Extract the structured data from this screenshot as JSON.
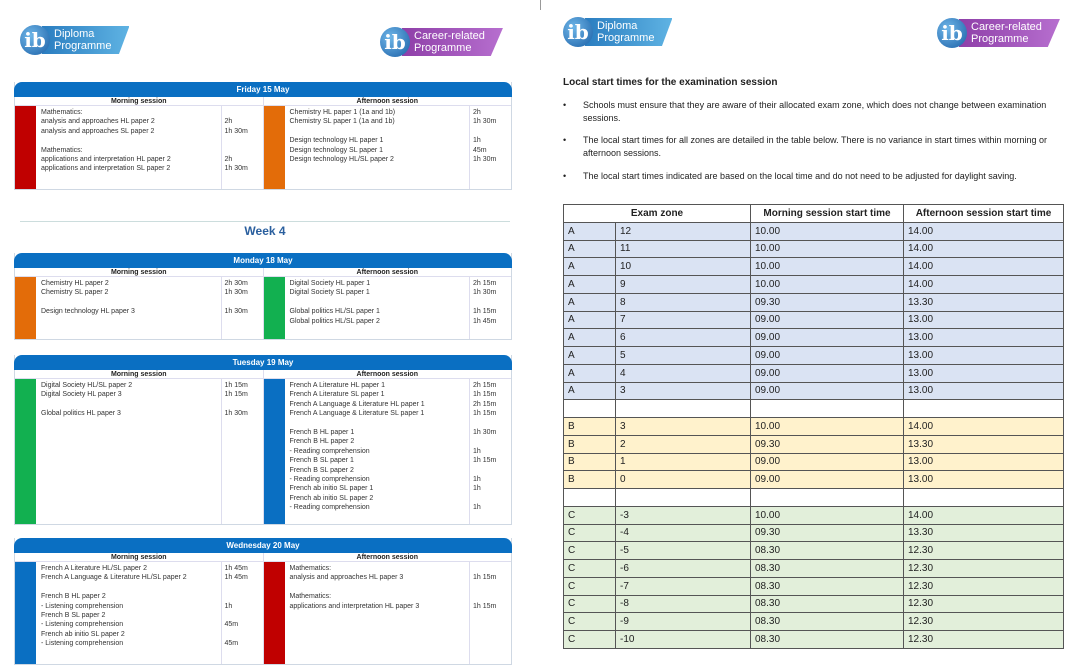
{
  "left_page": {
    "logo_dp": {
      "line1": "Diploma",
      "line2": "Programme"
    },
    "logo_cp": {
      "line1": "Career-related",
      "line2": "Programme"
    },
    "week_label": "Week 4",
    "morning_label": "Morning session",
    "afternoon_label": "Afternoon session",
    "colors": {
      "header": "#0a6fc2",
      "maths": "#c00000",
      "chemistry": "#e36c09",
      "digital": "#12b050",
      "french": "#0a6fc2"
    },
    "days": [
      {
        "title": "Friday 15 May",
        "morning": {
          "color": "#c00000",
          "lines": [
            [
              "Mathematics:",
              ""
            ],
            [
              "analysis and approaches HL paper 2",
              "2h"
            ],
            [
              "analysis and approaches SL paper 2",
              "1h 30m"
            ],
            [
              "",
              ""
            ],
            [
              "Mathematics:",
              ""
            ],
            [
              "applications and interpretation HL paper 2",
              "2h"
            ],
            [
              "applications and interpretation SL paper 2",
              "1h 30m"
            ]
          ]
        },
        "afternoon": {
          "color": "#e36c09",
          "lines": [
            [
              "Chemistry HL paper 1 (1a and 1b)",
              "2h"
            ],
            [
              "Chemistry SL paper 1 (1a and 1b)",
              "1h 30m"
            ],
            [
              "",
              ""
            ],
            [
              "Design technology HL paper 1",
              "1h"
            ],
            [
              "Design technology SL paper 1",
              "45m"
            ],
            [
              "Design technology HL/SL paper 2",
              "1h 30m"
            ]
          ]
        }
      },
      {
        "title": "Monday 18 May",
        "morning": {
          "color": "#e36c09",
          "lines": [
            [
              "Chemistry HL paper 2",
              "2h 30m"
            ],
            [
              "Chemistry SL paper 2",
              "1h 30m"
            ],
            [
              "",
              ""
            ],
            [
              "Design technology HL paper 3",
              "1h 30m"
            ]
          ]
        },
        "afternoon": {
          "color": "#12b050",
          "lines": [
            [
              "Digital Society HL paper 1",
              "2h 15m"
            ],
            [
              "Digital Society SL paper 1",
              "1h 30m"
            ],
            [
              "",
              ""
            ],
            [
              "Global politics HL/SL paper 1",
              "1h 15m"
            ],
            [
              "Global politics HL/SL paper 2",
              "1h 45m"
            ]
          ]
        }
      },
      {
        "title": "Tuesday 19 May",
        "morning": {
          "color": "#12b050",
          "lines": [
            [
              "Digital Society HL/SL paper 2",
              "1h 15m"
            ],
            [
              "Digital Society HL paper 3",
              "1h 15m"
            ],
            [
              "",
              ""
            ],
            [
              "Global politics HL paper 3",
              "1h 30m"
            ]
          ]
        },
        "afternoon": {
          "color": "#0a6fc2",
          "lines": [
            [
              "French A Literature HL paper 1",
              "2h 15m"
            ],
            [
              "French A Literature SL paper 1",
              "1h 15m"
            ],
            [
              "French A Language & Literature HL paper 1",
              "2h 15m"
            ],
            [
              "French A Language & Literature SL paper 1",
              "1h 15m"
            ],
            [
              "",
              ""
            ],
            [
              "French B HL paper 1",
              "1h 30m"
            ],
            [
              "French B HL paper 2",
              ""
            ],
            [
              "- Reading comprehension",
              "1h"
            ],
            [
              "French B SL paper 1",
              "1h 15m"
            ],
            [
              "French B SL paper 2",
              ""
            ],
            [
              "- Reading comprehension",
              "1h"
            ],
            [
              "French ab initio SL paper 1",
              "1h"
            ],
            [
              "French ab initio SL paper 2",
              ""
            ],
            [
              "- Reading comprehension",
              "1h"
            ]
          ]
        }
      },
      {
        "title": "Wednesday 20 May",
        "morning": {
          "color": "#0a6fc2",
          "lines": [
            [
              "French A Literature HL/SL paper 2",
              "1h 45m"
            ],
            [
              "French A Language & Literature HL/SL paper 2",
              "1h 45m"
            ],
            [
              "",
              ""
            ],
            [
              "French B HL paper 2",
              ""
            ],
            [
              "- Listening comprehension",
              "1h"
            ],
            [
              "French B SL paper 2",
              ""
            ],
            [
              "- Listening comprehension",
              "45m"
            ],
            [
              "French ab initio SL paper 2",
              ""
            ],
            [
              "- Listening comprehension",
              "45m"
            ]
          ]
        },
        "afternoon": {
          "color": "#c00000",
          "lines": [
            [
              "Mathematics:",
              ""
            ],
            [
              "analysis and approaches HL paper 3",
              "1h 15m"
            ],
            [
              "",
              ""
            ],
            [
              "Mathematics:",
              ""
            ],
            [
              "applications and interpretation HL paper 3",
              "1h 15m"
            ]
          ]
        }
      }
    ]
  },
  "right_page": {
    "logo_dp": {
      "line1": "Diploma",
      "line2": "Programme"
    },
    "logo_cp": {
      "line1": "Career-related",
      "line2": "Programme"
    },
    "title": "Local start times for the examination session",
    "bullets": [
      "Schools must ensure that they are aware of their allocated exam zone, which does not change between examination sessions.",
      "The local start times for all zones are detailed in the table below. There is no variance in start times within morning or afternoon sessions.",
      "The local start times indicated are based on the local time and do not need to be adjusted for daylight saving."
    ],
    "table": {
      "headers": [
        "Exam zone",
        "Morning session start time",
        "Afternoon session start time"
      ],
      "zone_colors": {
        "A": "#dae3f3",
        "B": "#fff2cc",
        "C": "#e2efda"
      },
      "rows": [
        [
          "A",
          "12",
          "10.00",
          "14.00"
        ],
        [
          "A",
          "11",
          "10.00",
          "14.00"
        ],
        [
          "A",
          "10",
          "10.00",
          "14.00"
        ],
        [
          "A",
          "9",
          "10.00",
          "14.00"
        ],
        [
          "A",
          "8",
          "09.30",
          "13.30"
        ],
        [
          "A",
          "7",
          "09.00",
          "13.00"
        ],
        [
          "A",
          "6",
          "09.00",
          "13.00"
        ],
        [
          "A",
          "5",
          "09.00",
          "13.00"
        ],
        [
          "A",
          "4",
          "09.00",
          "13.00"
        ],
        [
          "A",
          "3",
          "09.00",
          "13.00"
        ],
        [
          "",
          "",
          "",
          ""
        ],
        [
          "B",
          "3",
          "10.00",
          "14.00"
        ],
        [
          "B",
          "2",
          "09.30",
          "13.30"
        ],
        [
          "B",
          "1",
          "09.00",
          "13.00"
        ],
        [
          "B",
          "0",
          "09.00",
          "13.00"
        ],
        [
          "",
          "",
          "",
          ""
        ],
        [
          "C",
          "-3",
          "10.00",
          "14.00"
        ],
        [
          "C",
          "-4",
          "09.30",
          "13.30"
        ],
        [
          "C",
          "-5",
          "08.30",
          "12.30"
        ],
        [
          "C",
          "-6",
          "08.30",
          "12.30"
        ],
        [
          "C",
          "-7",
          "08.30",
          "12.30"
        ],
        [
          "C",
          "-8",
          "08.30",
          "12.30"
        ],
        [
          "C",
          "-9",
          "08.30",
          "12.30"
        ],
        [
          "C",
          "-10",
          "08.30",
          "12.30"
        ]
      ]
    }
  }
}
